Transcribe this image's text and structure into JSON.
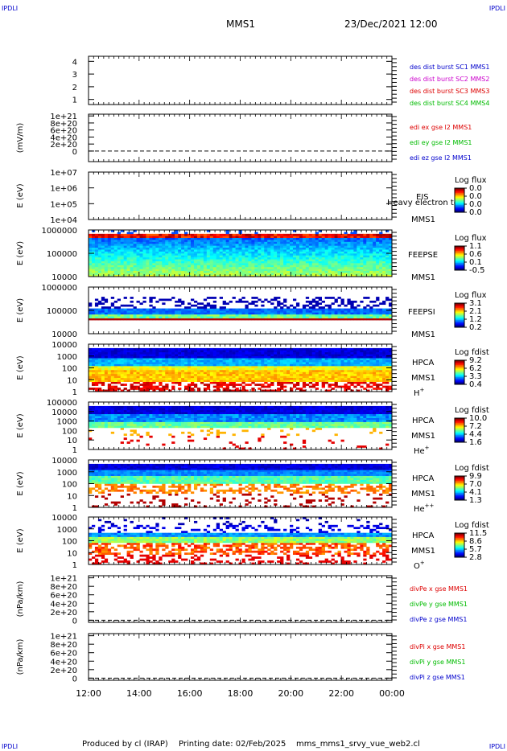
{
  "header": {
    "corner_tl": "IPDLI",
    "corner_tr": "IPDLI",
    "corner_bl": "IPDLI",
    "corner_br": "IPDLI",
    "spacecraft": "MMS1",
    "datetime": "23/Dec/2021 12:00"
  },
  "footer": {
    "produced_by": "Produced by cl (IRAP)",
    "printing_date": "Printing date: 02/Feb/2025",
    "script": "mms_mms1_srvy_vue_web2.cl"
  },
  "x_axis": {
    "ticks": [
      "12:00",
      "14:00",
      "16:00",
      "18:00",
      "20:00",
      "22:00",
      "00:00"
    ]
  },
  "colors": {
    "red": "#dd0000",
    "green": "#00bb00",
    "blue": "#0000cc",
    "magenta": "#cc00cc"
  },
  "chart_data": [
    {
      "type": "line",
      "panel": "burst",
      "ylabel": "",
      "yticks": [
        "1",
        "2",
        "3",
        "4"
      ],
      "ylim": [
        0.6,
        4.4
      ],
      "series": [
        {
          "name": "des dist burst SC1 MMS1",
          "color": "#0000cc",
          "values": []
        },
        {
          "name": "des dist burst SC2 MMS2",
          "color": "#cc00cc",
          "values": []
        },
        {
          "name": "des dist burst SC3 MMS3",
          "color": "#dd0000",
          "values": []
        },
        {
          "name": "des dist burst SC4 MMS4",
          "color": "#00bb00",
          "values": []
        }
      ]
    },
    {
      "type": "line",
      "panel": "edi",
      "ylabel": "(mV/m)",
      "yticks": [
        "0",
        "2e+20",
        "4e+20",
        "6e+20",
        "8e+20",
        "1e+21"
      ],
      "ylim": [
        -0.3,
        1.05
      ],
      "series": [
        {
          "name": "edi ex gse l2 MMS1",
          "color": "#dd0000",
          "values": []
        },
        {
          "name": "edi ey gse l2 MMS1",
          "color": "#00bb00",
          "values": []
        },
        {
          "name": "edi ez gse l2 MMS1",
          "color": "#0000cc",
          "values": []
        }
      ]
    },
    {
      "type": "heatmap",
      "panel": "eis",
      "ylabel": "E (eV)",
      "yticks": [
        "1e+04",
        "1e+05",
        "1e+06",
        "1e+07"
      ],
      "labels": [
        "EIS",
        "MMS1"
      ],
      "overlay_text": "Heavy electron to",
      "colorbar": {
        "title": "Log flux",
        "ticks": [
          "0.0",
          "0.0",
          "0.0",
          "0.0"
        ]
      },
      "fill": "none"
    },
    {
      "type": "heatmap",
      "panel": "feepse",
      "ylabel": "E (eV)",
      "yticks": [
        "10000",
        "100000",
        "1000000"
      ],
      "labels": [
        "FEEPSE",
        "MMS1"
      ],
      "colorbar": {
        "title": "Log flux",
        "ticks": [
          "1.1",
          "0.6",
          "0.1",
          "-0.5"
        ]
      },
      "fill": "feepse"
    },
    {
      "type": "heatmap",
      "panel": "feepsi",
      "ylabel": "E (eV)",
      "yticks": [
        "10000",
        "100000",
        "1000000"
      ],
      "labels": [
        "FEEPSI",
        "MMS1"
      ],
      "colorbar": {
        "title": "Log flux",
        "ticks": [
          "3.1",
          "2.1",
          "1.2",
          "0.2"
        ]
      },
      "fill": "feepsi"
    },
    {
      "type": "heatmap",
      "panel": "hpca_h",
      "ylabel": "E (eV)",
      "yticks": [
        "1",
        "10",
        "100",
        "1000",
        "10000"
      ],
      "labels": [
        "HPCA",
        "MMS1"
      ],
      "species": "H",
      "species_sup": "+",
      "colorbar": {
        "title": "Log fdist",
        "ticks": [
          "9.2",
          "6.2",
          "3.3",
          "0.4"
        ]
      },
      "fill": "hpca_h"
    },
    {
      "type": "heatmap",
      "panel": "hpca_he1",
      "ylabel": "E (eV)",
      "yticks": [
        "1",
        "10",
        "100",
        "1000",
        "10000",
        "100000"
      ],
      "labels": [
        "HPCA",
        "MMS1"
      ],
      "species": "He",
      "species_sup": "+",
      "colorbar": {
        "title": "Log fdist",
        "ticks": [
          "10.0",
          "7.2",
          "4.4",
          "1.6"
        ]
      },
      "fill": "hpca_he1"
    },
    {
      "type": "heatmap",
      "panel": "hpca_he2",
      "ylabel": "E (eV)",
      "yticks": [
        "1",
        "10",
        "100",
        "1000",
        "10000"
      ],
      "labels": [
        "HPCA",
        "MMS1"
      ],
      "species": "He",
      "species_sup": "++",
      "colorbar": {
        "title": "Log fdist",
        "ticks": [
          "9.9",
          "7.0",
          "4.1",
          "1.3"
        ]
      },
      "fill": "hpca_he2"
    },
    {
      "type": "heatmap",
      "panel": "hpca_o",
      "ylabel": "E (eV)",
      "yticks": [
        "1",
        "10",
        "100",
        "1000",
        "10000"
      ],
      "labels": [
        "HPCA",
        "MMS1"
      ],
      "species": "O",
      "species_sup": "+",
      "colorbar": {
        "title": "Log fdist",
        "ticks": [
          "11.5",
          "8.6",
          "5.7",
          "2.8"
        ]
      },
      "fill": "hpca_o"
    },
    {
      "type": "line",
      "panel": "divpe",
      "ylabel": "(nPa/km)",
      "yticks": [
        "0",
        "2e+20",
        "4e+20",
        "6e+20",
        "8e+20",
        "1e+21"
      ],
      "ylim": [
        -0.05,
        1.05
      ],
      "series": [
        {
          "name": "divPe x gse MMS1",
          "color": "#dd0000",
          "values": []
        },
        {
          "name": "divPe y gse MMS1",
          "color": "#00bb00",
          "values": []
        },
        {
          "name": "divPe z gse MMS1",
          "color": "#0000cc",
          "values": []
        }
      ]
    },
    {
      "type": "line",
      "panel": "divpi",
      "ylabel": "(nPa/km)",
      "yticks": [
        "0",
        "2e+20",
        "4e+20",
        "6e+20",
        "8e+20",
        "1e+21"
      ],
      "ylim": [
        -0.05,
        1.05
      ],
      "series": [
        {
          "name": "divPi x gse MMS1",
          "color": "#dd0000",
          "values": []
        },
        {
          "name": "divPi y gse MMS1",
          "color": "#00bb00",
          "values": []
        },
        {
          "name": "divPi z gse MMS1",
          "color": "#0000cc",
          "values": []
        }
      ]
    }
  ]
}
